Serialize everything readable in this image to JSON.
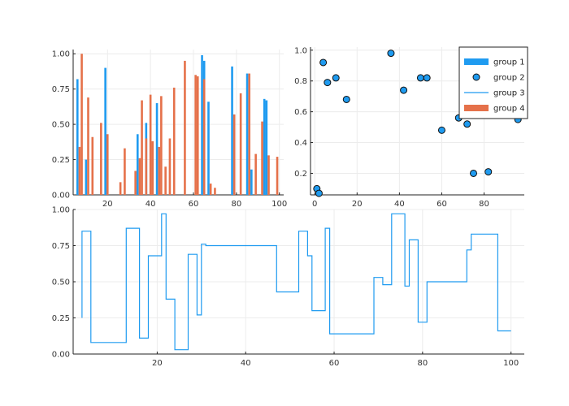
{
  "chart_data": [
    {
      "type": "bar",
      "panel": "top-left",
      "grid": true,
      "xlim": [
        4,
        102
      ],
      "ylim": [
        0,
        1.03
      ],
      "xticks": [
        20,
        40,
        60,
        80,
        100
      ],
      "yticks": [
        0.0,
        0.25,
        0.5,
        0.75,
        1.0
      ],
      "ytick_labels": [
        "0.00",
        "0.25",
        "0.50",
        "0.75",
        "1.00"
      ],
      "colors": [
        "#1f9bf0",
        "#e5714a"
      ],
      "series": [
        {
          "x": [
            6,
            10,
            19,
            34,
            38,
            43,
            64,
            65,
            67,
            78,
            85,
            87,
            93,
            94
          ],
          "values": [
            0.82,
            0.25,
            0.9,
            0.43,
            0.51,
            0.65,
            0.99,
            0.95,
            0.66,
            0.91,
            0.86,
            0.18,
            0.68,
            0.67
          ]
        },
        {
          "x": [
            7,
            8,
            11,
            13,
            17,
            20,
            26,
            28,
            33,
            35,
            36,
            38,
            40,
            41,
            44,
            45,
            47,
            49,
            51,
            56,
            61,
            62,
            65,
            68,
            70,
            79,
            82,
            86,
            89,
            92,
            95,
            99
          ],
          "values": [
            0.34,
            1.0,
            0.69,
            0.41,
            0.51,
            0.43,
            0.09,
            0.33,
            0.17,
            0.26,
            0.67,
            0.4,
            0.71,
            0.38,
            0.34,
            0.7,
            0.2,
            0.4,
            0.76,
            0.95,
            0.85,
            0.84,
            0.82,
            0.08,
            0.05,
            0.57,
            0.72,
            0.86,
            0.29,
            0.52,
            0.28,
            0.27
          ]
        }
      ]
    },
    {
      "type": "scatter",
      "panel": "top-right",
      "grid": true,
      "xlim": [
        -2,
        99
      ],
      "ylim": [
        0.06,
        1.02
      ],
      "xticks": [
        0,
        20,
        40,
        60,
        80
      ],
      "yticks": [
        0.2,
        0.4,
        0.6,
        0.8,
        1.0
      ],
      "ytick_labels": [
        "0.2",
        "0.4",
        "0.6",
        "0.8",
        "1.0"
      ],
      "color": "#1f9bf0",
      "points": [
        [
          1,
          0.1
        ],
        [
          2,
          0.07
        ],
        [
          4,
          0.92
        ],
        [
          6,
          0.79
        ],
        [
          10,
          0.82
        ],
        [
          15,
          0.68
        ],
        [
          36,
          0.98
        ],
        [
          42,
          0.74
        ],
        [
          50,
          0.82
        ],
        [
          53,
          0.82
        ],
        [
          60,
          0.48
        ],
        [
          68,
          0.56
        ],
        [
          72,
          0.52
        ],
        [
          75,
          0.2
        ],
        [
          82,
          0.21
        ],
        [
          96,
          0.55
        ]
      ],
      "legend": {
        "placement": "top-right",
        "entries": [
          {
            "label": "group 1",
            "kind": "bar",
            "color": "#1f9bf0"
          },
          {
            "label": "group 2",
            "kind": "marker",
            "color": "#1f9bf0"
          },
          {
            "label": "group 3",
            "kind": "line",
            "color": "#1f9bf0"
          },
          {
            "label": "group 4",
            "kind": "bar",
            "color": "#e5714a"
          }
        ]
      }
    },
    {
      "type": "line",
      "style": "step",
      "panel": "bottom",
      "grid": true,
      "xlim": [
        1,
        103
      ],
      "ylim": [
        0,
        1.0
      ],
      "xticks": [
        20,
        40,
        60,
        80,
        100
      ],
      "yticks": [
        0.0,
        0.25,
        0.5,
        0.75,
        1.0
      ],
      "ytick_labels": [
        "0.00",
        "0.25",
        "0.50",
        "0.75",
        "1.00"
      ],
      "color": "#1f9bf0",
      "points": [
        [
          3,
          0.25
        ],
        [
          3,
          0.85
        ],
        [
          5,
          0.85
        ],
        [
          5,
          0.08
        ],
        [
          13,
          0.08
        ],
        [
          13,
          0.87
        ],
        [
          16,
          0.87
        ],
        [
          16,
          0.11
        ],
        [
          18,
          0.11
        ],
        [
          18,
          0.68
        ],
        [
          21,
          0.68
        ],
        [
          21,
          0.97
        ],
        [
          22,
          0.97
        ],
        [
          22,
          0.38
        ],
        [
          24,
          0.38
        ],
        [
          24,
          0.03
        ],
        [
          27,
          0.03
        ],
        [
          27,
          0.69
        ],
        [
          29,
          0.69
        ],
        [
          29,
          0.27
        ],
        [
          30,
          0.27
        ],
        [
          30,
          0.76
        ],
        [
          31,
          0.76
        ],
        [
          31,
          0.75
        ],
        [
          47,
          0.75
        ],
        [
          47,
          0.43
        ],
        [
          52,
          0.43
        ],
        [
          52,
          0.85
        ],
        [
          54,
          0.85
        ],
        [
          54,
          0.68
        ],
        [
          55,
          0.68
        ],
        [
          55,
          0.3
        ],
        [
          58,
          0.3
        ],
        [
          58,
          0.87
        ],
        [
          59,
          0.87
        ],
        [
          59,
          0.14
        ],
        [
          69,
          0.14
        ],
        [
          69,
          0.53
        ],
        [
          71,
          0.53
        ],
        [
          71,
          0.48
        ],
        [
          73,
          0.48
        ],
        [
          73,
          0.97
        ],
        [
          76,
          0.97
        ],
        [
          76,
          0.47
        ],
        [
          77,
          0.47
        ],
        [
          77,
          0.79
        ],
        [
          79,
          0.79
        ],
        [
          79,
          0.22
        ],
        [
          81,
          0.22
        ],
        [
          81,
          0.5
        ],
        [
          90,
          0.5
        ],
        [
          90,
          0.72
        ],
        [
          91,
          0.72
        ],
        [
          91,
          0.83
        ],
        [
          97,
          0.83
        ],
        [
          97,
          0.16
        ],
        [
          100,
          0.16
        ]
      ]
    }
  ]
}
